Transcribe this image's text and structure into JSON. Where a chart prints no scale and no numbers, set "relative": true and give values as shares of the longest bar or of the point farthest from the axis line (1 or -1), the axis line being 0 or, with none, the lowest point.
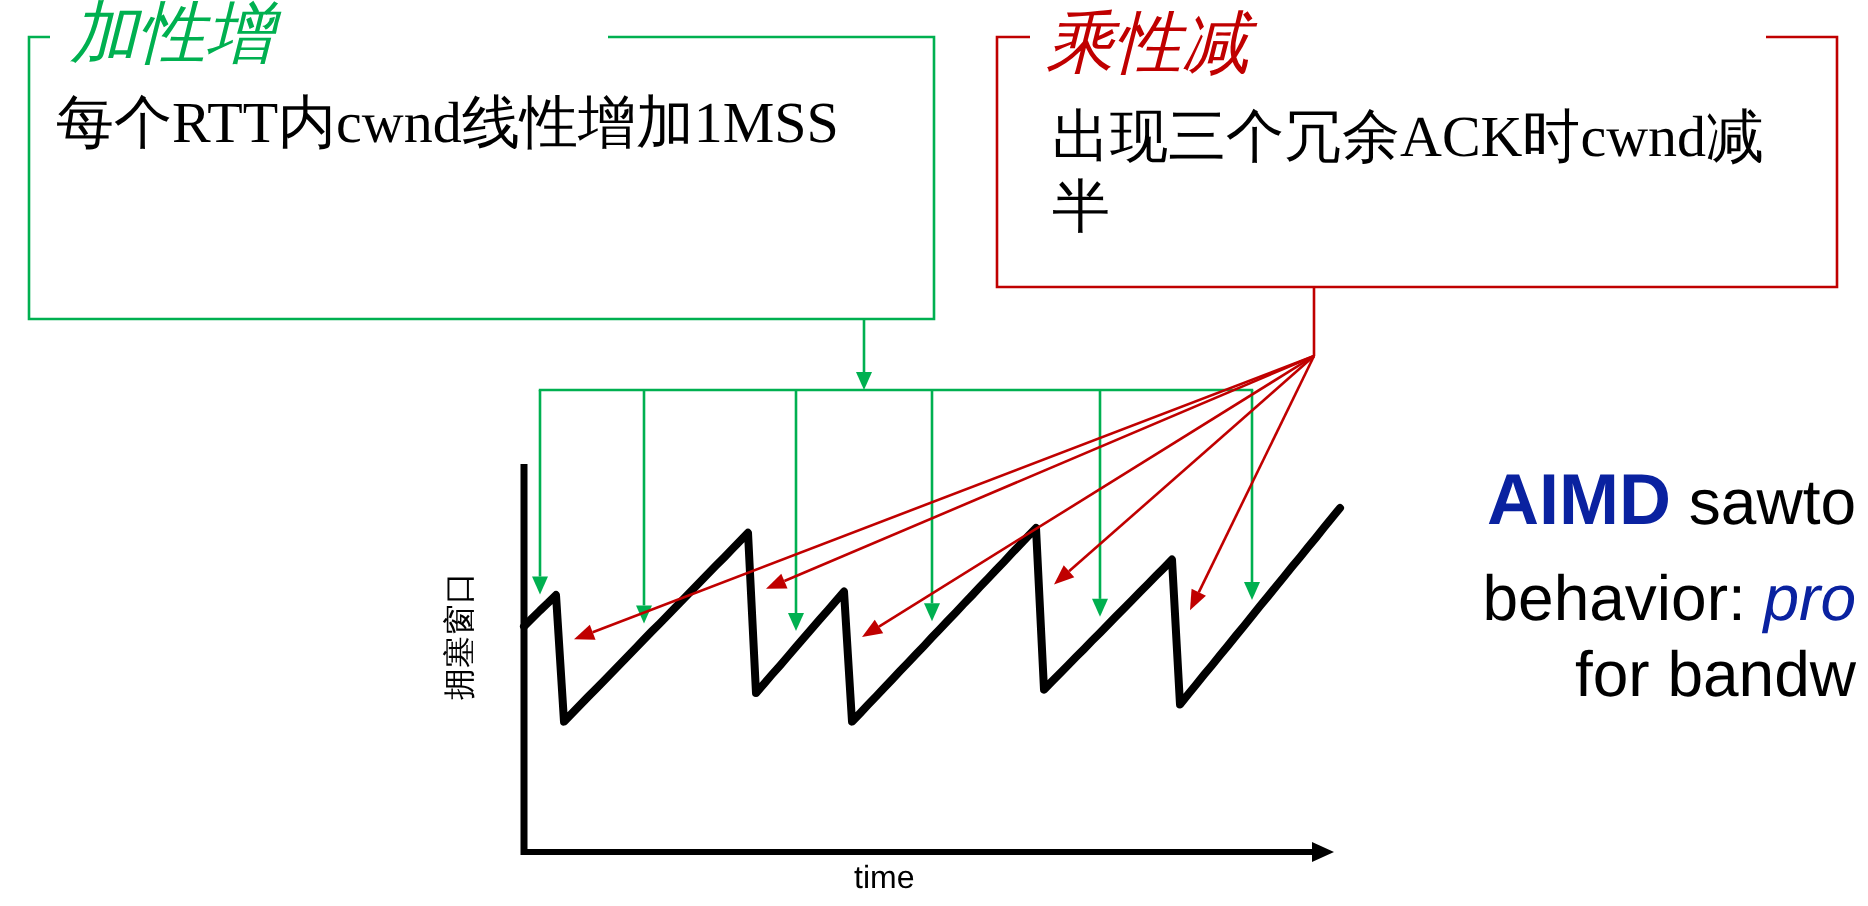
{
  "chart_data": {
    "type": "line",
    "relative": true,
    "xlabel": "time",
    "ylabel": "拥塞窗口",
    "color": "#000000",
    "categories": [
      null,
      null,
      null,
      null,
      null,
      null,
      null,
      null,
      null,
      null,
      null,
      null,
      null,
      null,
      null,
      null,
      null,
      null,
      null,
      null,
      null,
      null,
      null,
      null,
      null,
      null,
      null,
      null,
      null,
      null,
      null,
      null,
      null,
      null,
      null,
      null,
      null,
      null,
      null,
      null,
      null,
      null,
      null,
      null,
      null,
      null,
      null,
      null,
      null,
      null,
      null,
      null,
      null,
      null,
      null,
      null,
      null,
      null,
      null,
      null,
      null,
      null,
      null,
      null,
      null,
      null,
      null,
      null,
      null,
      null,
      null,
      null,
      null,
      null,
      null,
      null,
      null,
      null,
      null,
      null,
      null,
      null,
      null,
      null,
      null,
      null,
      null,
      null,
      null,
      null,
      null,
      null,
      null,
      null,
      null,
      null,
      null,
      null,
      null,
      null,
      null,
      null,
      null
    ],
    "values": [
      0.656,
      0.679,
      0.702,
      0.724,
      0.747,
      0.379,
      0.403,
      0.427,
      0.451,
      0.474,
      0.498,
      0.522,
      0.546,
      0.57,
      0.594,
      0.618,
      0.642,
      0.665,
      0.689,
      0.713,
      0.737,
      0.761,
      0.785,
      0.809,
      0.833,
      0.856,
      0.88,
      0.904,
      0.928,
      0.462,
      0.489,
      0.516,
      0.542,
      0.569,
      0.596,
      0.623,
      0.65,
      0.677,
      0.703,
      0.73,
      0.757,
      0.379,
      0.403,
      0.428,
      0.452,
      0.477,
      0.501,
      0.526,
      0.55,
      0.575,
      0.599,
      0.624,
      0.648,
      0.673,
      0.697,
      0.722,
      0.746,
      0.771,
      0.795,
      0.82,
      0.844,
      0.869,
      0.893,
      0.918,
      0.942,
      0.472,
      0.496,
      0.519,
      0.543,
      0.567,
      0.59,
      0.614,
      0.637,
      0.661,
      0.685,
      0.708,
      0.732,
      0.756,
      0.779,
      0.803,
      0.826,
      0.85,
      0.429,
      0.458,
      0.486,
      0.515,
      0.543,
      0.572,
      0.6,
      0.629,
      0.657,
      0.686,
      0.715,
      0.743,
      0.772,
      0.8,
      0.829,
      0.857,
      0.886,
      0.914,
      0.943,
      0.972,
      1.0
    ],
    "annotations": [
      "加性增",
      "每个RTT内cwnd线性增加1MSS",
      "乘性减",
      "出现三个冗余ACK时cwnd减半",
      "AIMD sawto",
      "behavior: pro",
      "for bandw"
    ]
  }
}
